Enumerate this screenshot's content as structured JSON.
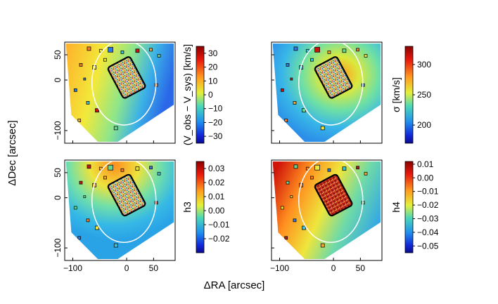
{
  "figure": {
    "x_axis_label": "ΔRA [arcsec]",
    "y_axis_label": "ΔDec [arcsec]",
    "x_ticks": [
      "−100",
      "0",
      "50"
    ],
    "y_ticks": [
      "50",
      "0",
      "−100"
    ]
  },
  "chart_data": [
    {
      "type": "heatmap",
      "panel": "top-left",
      "quantity": "velocity",
      "colorbar_label": "(V_obs − V_sys) [km/s]",
      "colorbar_ticks": [
        "30",
        "20",
        "10",
        "0",
        "−10",
        "−20",
        "−30"
      ],
      "colorbar_values": [
        30,
        20,
        10,
        0,
        -10,
        -20,
        -30
      ],
      "range": [
        -35,
        35
      ],
      "xlim": [
        -115,
        90
      ],
      "ylim": [
        -125,
        75
      ]
    },
    {
      "type": "heatmap",
      "panel": "top-right",
      "quantity": "dispersion",
      "colorbar_label": "σ [km/s]",
      "colorbar_ticks": [
        "300",
        "250",
        "200"
      ],
      "colorbar_values": [
        300,
        250,
        200
      ],
      "range": [
        170,
        330
      ],
      "xlim": [
        -115,
        90
      ],
      "ylim": [
        -125,
        75
      ]
    },
    {
      "type": "heatmap",
      "panel": "bottom-left",
      "quantity": "h3",
      "colorbar_label": "h3",
      "colorbar_ticks": [
        "0.03",
        "0.02",
        "0.01",
        "0.00",
        "−0.01",
        "−0.02"
      ],
      "colorbar_values": [
        0.03,
        0.02,
        0.01,
        0.0,
        -0.01,
        -0.02
      ],
      "range": [
        -0.03,
        0.035
      ],
      "xlim": [
        -115,
        90
      ],
      "ylim": [
        -125,
        75
      ]
    },
    {
      "type": "heatmap",
      "panel": "bottom-right",
      "quantity": "h4",
      "colorbar_label": "h4",
      "colorbar_ticks": [
        "0.01",
        "0.00",
        "−0.01",
        "−0.02",
        "−0.03",
        "−0.04",
        "−0.05"
      ],
      "colorbar_values": [
        0.01,
        0.0,
        -0.01,
        -0.02,
        -0.03,
        -0.04,
        -0.05
      ],
      "range": [
        -0.055,
        0.012
      ],
      "xlim": [
        -115,
        90
      ],
      "ylim": [
        -125,
        75
      ]
    }
  ]
}
